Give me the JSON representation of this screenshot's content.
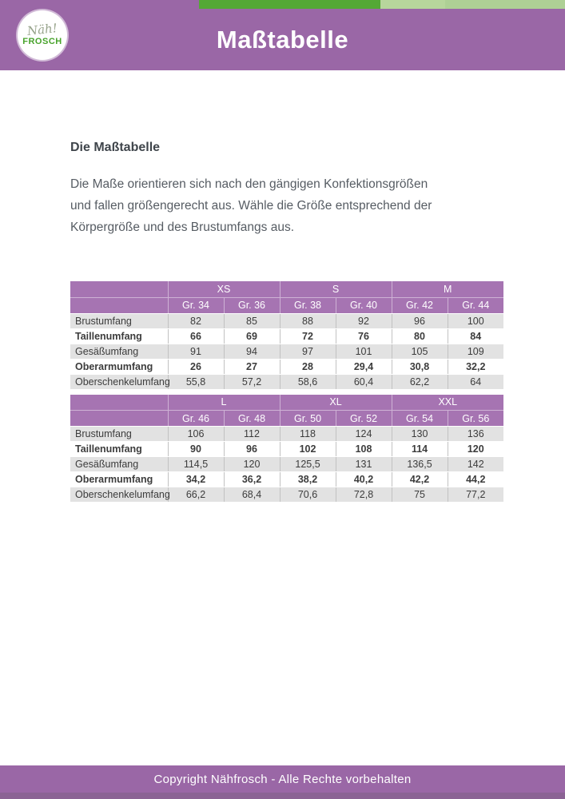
{
  "header": {
    "title": "Maßtabelle",
    "logo_line1": "Näh!",
    "logo_line2": "FROSCH"
  },
  "intro": {
    "heading": "Die Maßtabelle",
    "body": "Die Maße orientieren sich nach den gängigen Konfektionsgrößen\nund fallen größengerecht aus. Wähle die Größe entsprechend der\nKörpergröße und des Brustumfangs aus."
  },
  "tables": [
    {
      "size_groups": [
        {
          "label": "XS",
          "span": 2
        },
        {
          "label": "S",
          "span": 2
        },
        {
          "label": "M",
          "span": 2
        }
      ],
      "size_columns": [
        "Gr. 34",
        "Gr. 36",
        "Gr. 38",
        "Gr. 40",
        "Gr. 42",
        "Gr. 44"
      ],
      "rows": [
        {
          "label": "Brustumfang",
          "bold": false,
          "values": [
            "82",
            "85",
            "88",
            "92",
            "96",
            "100"
          ]
        },
        {
          "label": "Taillenumfang",
          "bold": true,
          "values": [
            "66",
            "69",
            "72",
            "76",
            "80",
            "84"
          ]
        },
        {
          "label": "Gesäßumfang",
          "bold": false,
          "values": [
            "91",
            "94",
            "97",
            "101",
            "105",
            "109"
          ]
        },
        {
          "label": "Oberarmumfang",
          "bold": true,
          "values": [
            "26",
            "27",
            "28",
            "29,4",
            "30,8",
            "32,2"
          ]
        },
        {
          "label": "Oberschenkelumfang",
          "bold": false,
          "values": [
            "55,8",
            "57,2",
            "58,6",
            "60,4",
            "62,2",
            "64"
          ]
        }
      ]
    },
    {
      "size_groups": [
        {
          "label": "L",
          "span": 2
        },
        {
          "label": "XL",
          "span": 2
        },
        {
          "label": "XXL",
          "span": 2
        }
      ],
      "size_columns": [
        "Gr. 46",
        "Gr. 48",
        "Gr. 50",
        "Gr. 52",
        "Gr. 54",
        "Gr. 56"
      ],
      "rows": [
        {
          "label": "Brustumfang",
          "bold": false,
          "values": [
            "106",
            "112",
            "118",
            "124",
            "130",
            "136"
          ]
        },
        {
          "label": "Taillenumfang",
          "bold": true,
          "values": [
            "90",
            "96",
            "102",
            "108",
            "114",
            "120"
          ]
        },
        {
          "label": "Gesäßumfang",
          "bold": false,
          "values": [
            "114,5",
            "120",
            "125,5",
            "131",
            "136,5",
            "142"
          ]
        },
        {
          "label": "Oberarmumfang",
          "bold": true,
          "values": [
            "34,2",
            "36,2",
            "38,2",
            "40,2",
            "42,2",
            "44,2"
          ]
        },
        {
          "label": "Oberschenkelumfang",
          "bold": false,
          "values": [
            "66,2",
            "68,4",
            "70,6",
            "72,8",
            "75",
            "77,2"
          ]
        }
      ]
    }
  ],
  "footer": {
    "text": "Copyright Nähfrosch - Alle Rechte vorbehalten"
  },
  "colors": {
    "brand_purple": "#9a67a6",
    "table_header_purple": "#a674b2",
    "accent_green_dark": "#54a835",
    "accent_green_mid": "#b7d69c",
    "accent_green_light": "#aed095",
    "row_gray": "#e2e2e2",
    "footer_strip": "#8b6394"
  }
}
